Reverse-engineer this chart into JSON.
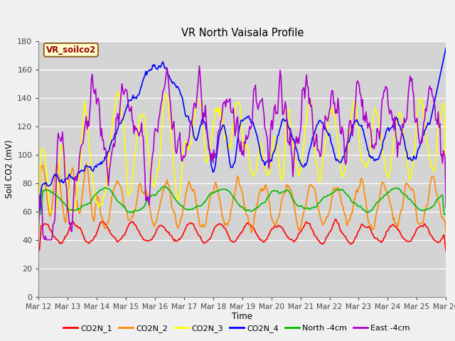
{
  "title": "VR North Vaisala Profile",
  "xlabel": "Time",
  "ylabel": "Soil CO2 (mV)",
  "ylim": [
    0,
    180
  ],
  "yticks": [
    0,
    20,
    40,
    60,
    80,
    100,
    120,
    140,
    160,
    180
  ],
  "xlabels": [
    "Mar 12",
    "Mar 13",
    "Mar 14",
    "Mar 15",
    "Mar 16",
    "Mar 17",
    "Mar 18",
    "Mar 19",
    "Mar 20",
    "Mar 21",
    "Mar 22",
    "Mar 23",
    "Mar 24",
    "Mar 25",
    "Mar 26"
  ],
  "series_colors": {
    "CO2N_1": "#ff0000",
    "CO2N_2": "#ff8800",
    "CO2N_3": "#ffff00",
    "CO2N_4": "#0000ff",
    "North -4cm": "#00bb00",
    "East -4cm": "#aa00cc"
  },
  "legend_label": "VR_soilco2",
  "fig_facecolor": "#f0f0f0",
  "plot_bg_color": "#d4d4d4",
  "grid_color": "#bbbbbb",
  "n_points": 480
}
